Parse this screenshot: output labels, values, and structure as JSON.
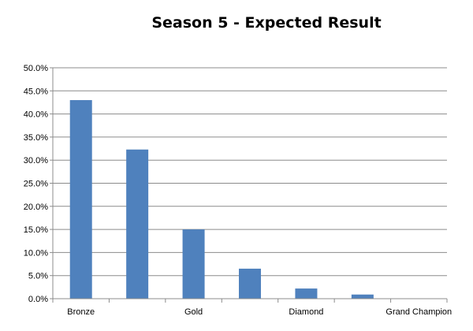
{
  "chart_data": {
    "type": "bar",
    "title": "Season 5 - Expected Result",
    "xlabel": "",
    "ylabel": "",
    "categories": [
      "Bronze",
      "",
      "Gold",
      "",
      "Diamond",
      "",
      "Grand Champion"
    ],
    "values": [
      43.0,
      32.3,
      15.0,
      6.5,
      2.2,
      0.9,
      0.0
    ],
    "ylim": [
      0,
      50
    ],
    "yticks": [
      "0.0%",
      "5.0%",
      "10.0%",
      "15.0%",
      "20.0%",
      "25.0%",
      "30.0%",
      "35.0%",
      "40.0%",
      "45.0%",
      "50.0%"
    ],
    "grid": true,
    "legend": "none",
    "bar_color": "#4f81bd"
  }
}
